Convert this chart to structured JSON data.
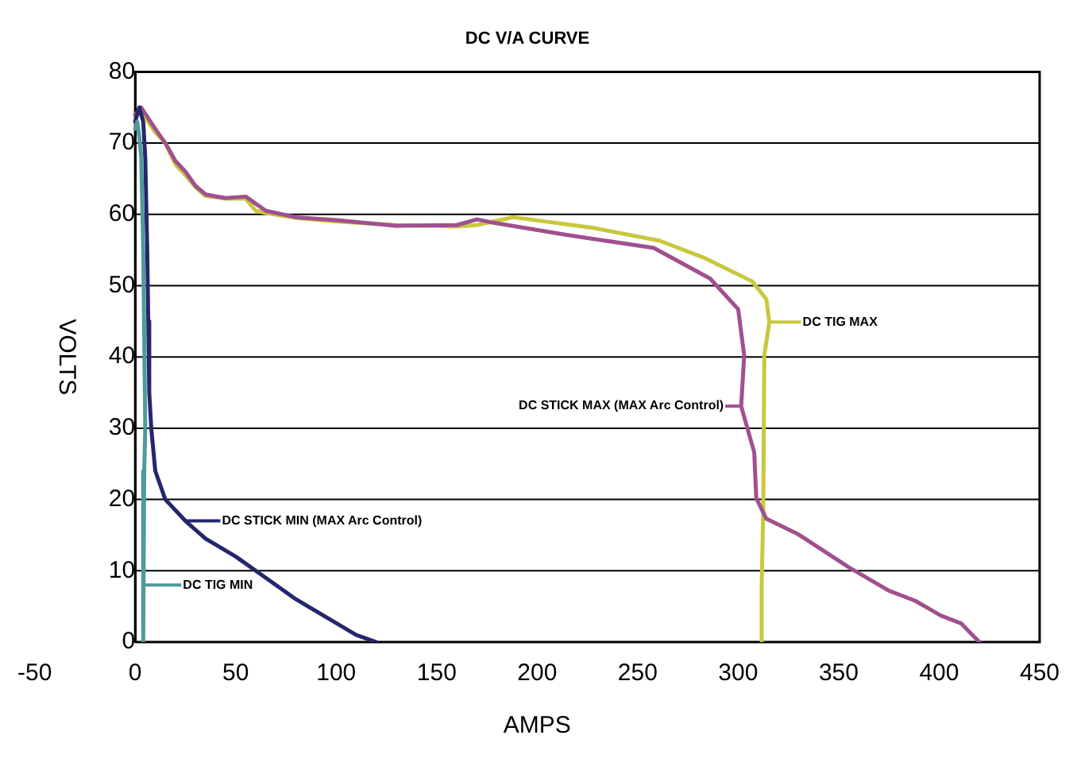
{
  "chart_data": {
    "type": "line",
    "title": "DC V/A CURVE",
    "xlabel": "AMPS",
    "ylabel": "VOLTS",
    "xlim": [
      -50,
      450
    ],
    "xticks": [
      -50,
      0,
      50,
      100,
      150,
      200,
      250,
      300,
      350,
      400,
      450
    ],
    "ylim": [
      0,
      80
    ],
    "yticks": [
      0,
      10,
      20,
      30,
      40,
      50,
      60,
      70,
      80
    ],
    "grid": "y",
    "legend": "right",
    "marker": "none",
    "line_style": "solid",
    "series": [
      {
        "name": "DC TIG MIN",
        "color": "#4f9a9a",
        "x": [
          0,
          1,
          2,
          3,
          4,
          5,
          4.5,
          4,
          4,
          4,
          4
        ],
        "values": [
          72,
          73,
          71,
          68,
          55,
          30,
          24,
          20,
          15,
          8,
          0
        ]
      },
      {
        "name": "DC STICK MIN (MAX Arc Control)",
        "color": "#26266e",
        "x": [
          0,
          2,
          4,
          5,
          6,
          6.5,
          7,
          8,
          10,
          15,
          25,
          35,
          50,
          65,
          80,
          95,
          110,
          120
        ],
        "values": [
          73,
          75,
          73,
          68,
          55,
          45,
          35,
          30,
          24,
          20,
          17,
          14.5,
          12,
          9,
          6,
          3.5,
          1,
          0
        ]
      },
      {
        "name": "DC STICK MAX (MAX Arc Control)",
        "color": "#a0508f",
        "x": [
          0,
          3,
          10,
          15,
          20,
          25,
          30,
          35,
          45,
          55,
          60,
          65,
          80,
          100,
          130,
          160,
          170,
          177,
          215,
          258,
          286,
          300,
          303,
          301.5,
          308,
          309,
          314,
          330,
          355,
          375,
          388,
          401,
          411,
          420
        ],
        "values": [
          74,
          75,
          72,
          70,
          67.5,
          66,
          64,
          62.8,
          62.3,
          62.5,
          61.5,
          60.5,
          59.6,
          59.2,
          58.4,
          58.5,
          59.3,
          58.9,
          57.1,
          55.3,
          51,
          46.7,
          40.2,
          33.1,
          26.6,
          20.2,
          17.3,
          15.1,
          10.5,
          7.2,
          5.8,
          3.7,
          2.6,
          0
        ]
      },
      {
        "name": "DC TIG MAX",
        "color": "#c8c83c",
        "x": [
          0,
          3,
          10,
          15,
          20,
          25,
          30,
          35,
          45,
          55,
          60,
          65,
          80,
          100,
          130,
          160,
          170,
          188,
          228,
          261,
          284,
          307,
          314,
          315.5,
          313,
          312.5,
          311.7,
          311.7
        ],
        "values": [
          74,
          74.5,
          71.5,
          70,
          67,
          65.5,
          63.8,
          62.6,
          62.2,
          62.2,
          60.5,
          60.2,
          59.5,
          59,
          58.5,
          58.3,
          58.5,
          59.6,
          58.1,
          56.3,
          53.8,
          50.6,
          48.1,
          44.9,
          40.2,
          18.7,
          8,
          0
        ]
      }
    ]
  }
}
